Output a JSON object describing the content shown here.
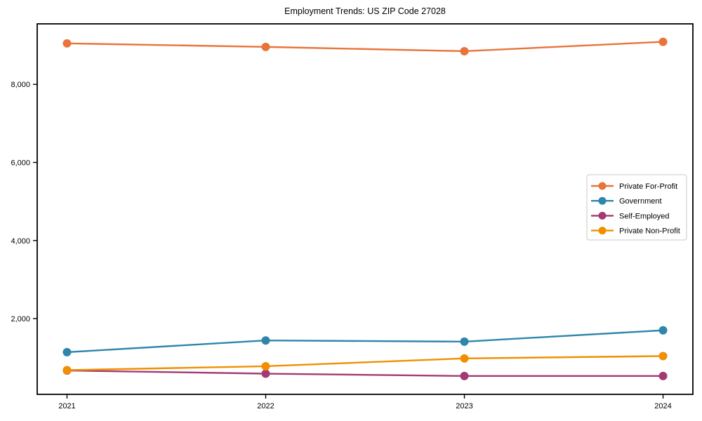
{
  "chart_data": {
    "type": "line",
    "title": "Employment Trends: US ZIP Code 27028",
    "xlabel": "",
    "ylabel": "",
    "categories": [
      2021,
      2022,
      2023,
      2024
    ],
    "series": [
      {
        "name": "Private For-Profit",
        "color": "#E8743B",
        "values": [
          9050,
          8960,
          8850,
          9090
        ]
      },
      {
        "name": "Government",
        "color": "#2E86AB",
        "values": [
          1140,
          1440,
          1410,
          1700
        ]
      },
      {
        "name": "Self-Employed",
        "color": "#A23B72",
        "values": [
          670,
          590,
          530,
          530
        ]
      },
      {
        "name": "Private Non-Profit",
        "color": "#F18F01",
        "values": [
          680,
          780,
          980,
          1040
        ]
      }
    ],
    "xlim": [
      2020.85,
      2024.15
    ],
    "ylim": [
      60,
      9550
    ],
    "xticks": [
      {
        "value": 2021,
        "label": "2021"
      },
      {
        "value": 2022,
        "label": "2022"
      },
      {
        "value": 2023,
        "label": "2023"
      },
      {
        "value": 2024,
        "label": "2024"
      }
    ],
    "yticks": [
      {
        "value": 2000,
        "label": "2,000"
      },
      {
        "value": 4000,
        "label": "4,000"
      },
      {
        "value": 6000,
        "label": "6,000"
      },
      {
        "value": 8000,
        "label": "8,000"
      }
    ],
    "grid": false,
    "marker": "circle",
    "legend": {
      "position": "center-right",
      "entries": [
        "Private For-Profit",
        "Government",
        "Self-Employed",
        "Private Non-Profit"
      ]
    }
  }
}
